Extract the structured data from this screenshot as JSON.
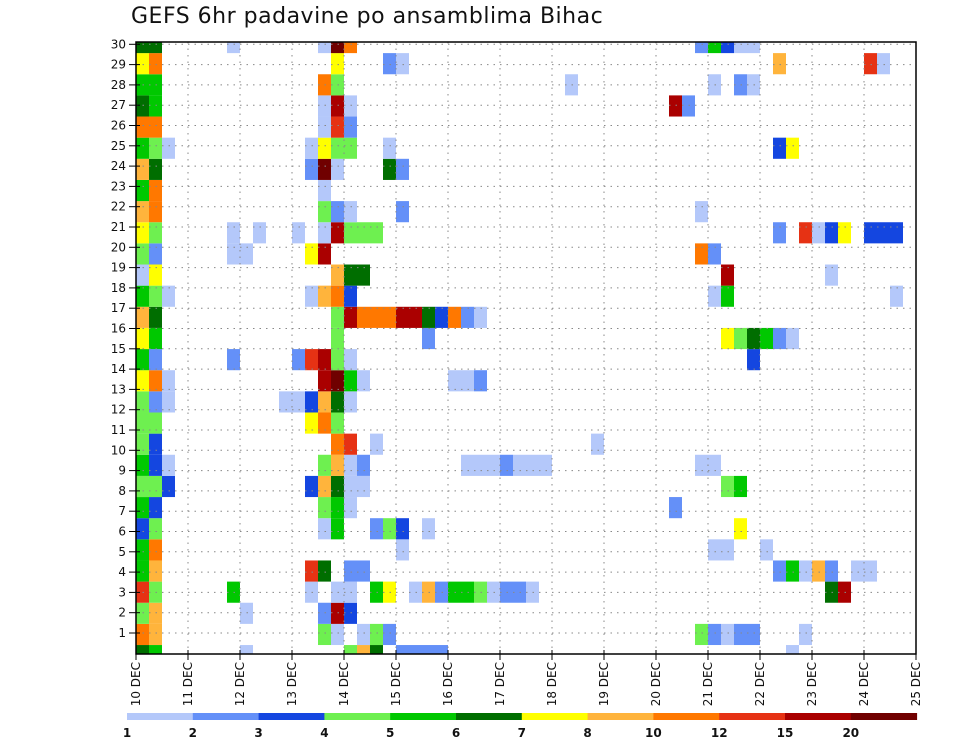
{
  "chart_data": {
    "type": "heatmap",
    "title": "GEFS 6hr padavine po ansamblima Bihac",
    "xlabel": "",
    "ylabel": "",
    "x_step_hours": 6,
    "x_tick_labels": [
      "10 DEC",
      "11 DEC",
      "12 DEC",
      "13 DEC",
      "14 DEC",
      "15 DEC",
      "16 DEC",
      "17 DEC",
      "18 DEC",
      "19 DEC",
      "20 DEC",
      "21 DEC",
      "22 DEC",
      "23 DEC",
      "24 DEC",
      "25 DEC"
    ],
    "y_tick_labels": [
      "1",
      "2",
      "3",
      "4",
      "5",
      "6",
      "7",
      "8",
      "9",
      "10",
      "11",
      "12",
      "13",
      "14",
      "15",
      "16",
      "17",
      "18",
      "19",
      "20",
      "21",
      "22",
      "23",
      "24",
      "25",
      "26",
      "27",
      "28",
      "29",
      "30"
    ],
    "grid": true,
    "colorbar": {
      "placement": "bottom",
      "labels": [
        "1",
        "2",
        "3",
        "4",
        "5",
        "6",
        "7",
        "8",
        "10",
        "12",
        "15",
        "20"
      ],
      "class_codes": [
        "a",
        "b",
        "c",
        "d",
        "e",
        "f",
        "g",
        "h",
        "i",
        "j",
        "k",
        "l"
      ],
      "colors": [
        "#b4c8fa",
        "#6490f8",
        "#1446e0",
        "#6ef050",
        "#00c800",
        "#006e00",
        "#ffff00",
        "#ffb43c",
        "#ff7800",
        "#e63214",
        "#aa0000",
        "#700000"
      ]
    },
    "rows_bottom_to_top": [
      "0f,1e,8a,16d,17h,18f,20b,21b,22b,23b,50a",
      "0i,1h,14d,15a,17a,18d,19b,43d,44b,45a,46b,47b,51a",
      "0d,1h,8a,14b,15k,16c",
      "0j,1d,7e,13a,15a,16a,18e,19g,21a,22h,23b,24e,25e,26d,27a,28b,29b,30a,53f,54k",
      "0e,1h,13j,14f,16b,17b,49b,50e,51a,52h,53b,55a,56a",
      "0e,1i,20a,44a,45a,48a",
      "0c,1d,14a,15e,18b,19d,20c,22a,46g",
      "0e,1c,14d,15e,16a,41b",
      "0d,1d,2c,13c,14h,15f,16a,17a,45d,46e",
      "0e,1c,2a,14d,15h,16a,17b,25a,26a,27a,28b,29a,30a,31a,43a,44a",
      "0d,1c,15i,16j,18a,35a",
      "0d,1d,13g,14i,15d",
      "0d,1b,2a,11a,12a,13c,14h,15f,16a",
      "0g,1i,2a,14k,15l,16e,17a,24a,25a,26b",
      "0e,1b,7b,12b,13j,14k,15d,16a,47c",
      "0g,1e,15d,22b,45g,46d,47f,48e,49b,50a",
      "0h,1f,15d,16k,17i,18i,19i,20k,21k,22f,23c,24i,25b,26a",
      "0e,1d,2a,13a,14h,15i,16c,44a,45e,58a",
      "0a,1g,15h,16f,17f,45k,53a",
      "0d,1b,7a,8a,13g,14k,43i,44b",
      "0g,1d,7a,9a,12a,14a,15k,16d,17d,18d,49b,51j,52a,53c,54g,56c,57c,58c",
      "0h,1i,14d,15b,16a,20b,43a",
      "0e,1i,14a",
      "0h,1f,13b,14l,15a,19f,20b",
      "0e,1d,2a,13a,14g,15d,16d,19a,49c,50g",
      "0i,1i,14a,15j,16b",
      "0f,1e,14a,15k,16a,41k,42b",
      "0e,1e,14i,15d,33a,44a,46b,47a",
      "0g,1i,15g,19b,20a,49h,56j,57a",
      "0f,1f,7a,14a,15l,16i,43b,44e,45c,46a,47a"
    ]
  }
}
